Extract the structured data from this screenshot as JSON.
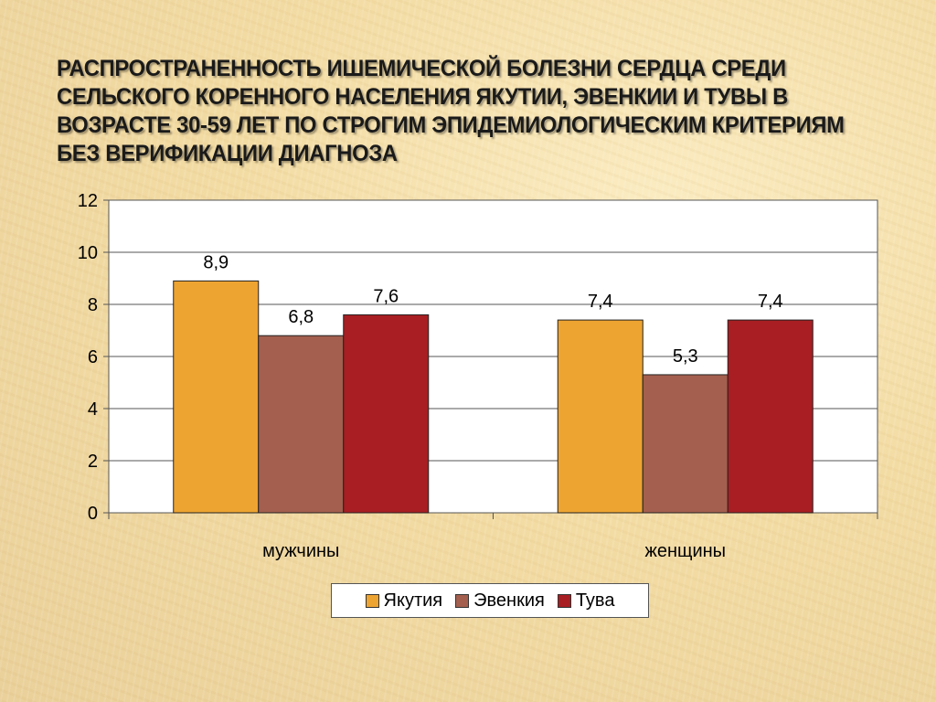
{
  "slide": {
    "title": "Распространенность ишемической болезни сердца среди  сельского коренного населения Якутии, Эвенкии и Тувы в возрасте 30-59 лет по строгим эпидемиологическим критериям без верификации диагноза"
  },
  "chart_data": {
    "type": "bar",
    "categories": [
      "мужчины",
      "женщины"
    ],
    "series": [
      {
        "name": "Якутия",
        "values": [
          8.9,
          7.4
        ],
        "labels": [
          "8,9",
          "7,4"
        ],
        "color": "#eea431"
      },
      {
        "name": "Эвенкия",
        "values": [
          6.8,
          5.3
        ],
        "labels": [
          "6,8",
          "5,3"
        ],
        "color": "#a45f4e"
      },
      {
        "name": "Тува",
        "values": [
          7.6,
          7.4
        ],
        "labels": [
          "7,6",
          "7,4"
        ],
        "color": "#a81e22"
      }
    ],
    "ylim": [
      0,
      12
    ],
    "yticks": [
      0,
      2,
      4,
      6,
      8,
      10,
      12
    ],
    "grid": true,
    "legend": "bottom",
    "plot_background": "#ffffff"
  }
}
